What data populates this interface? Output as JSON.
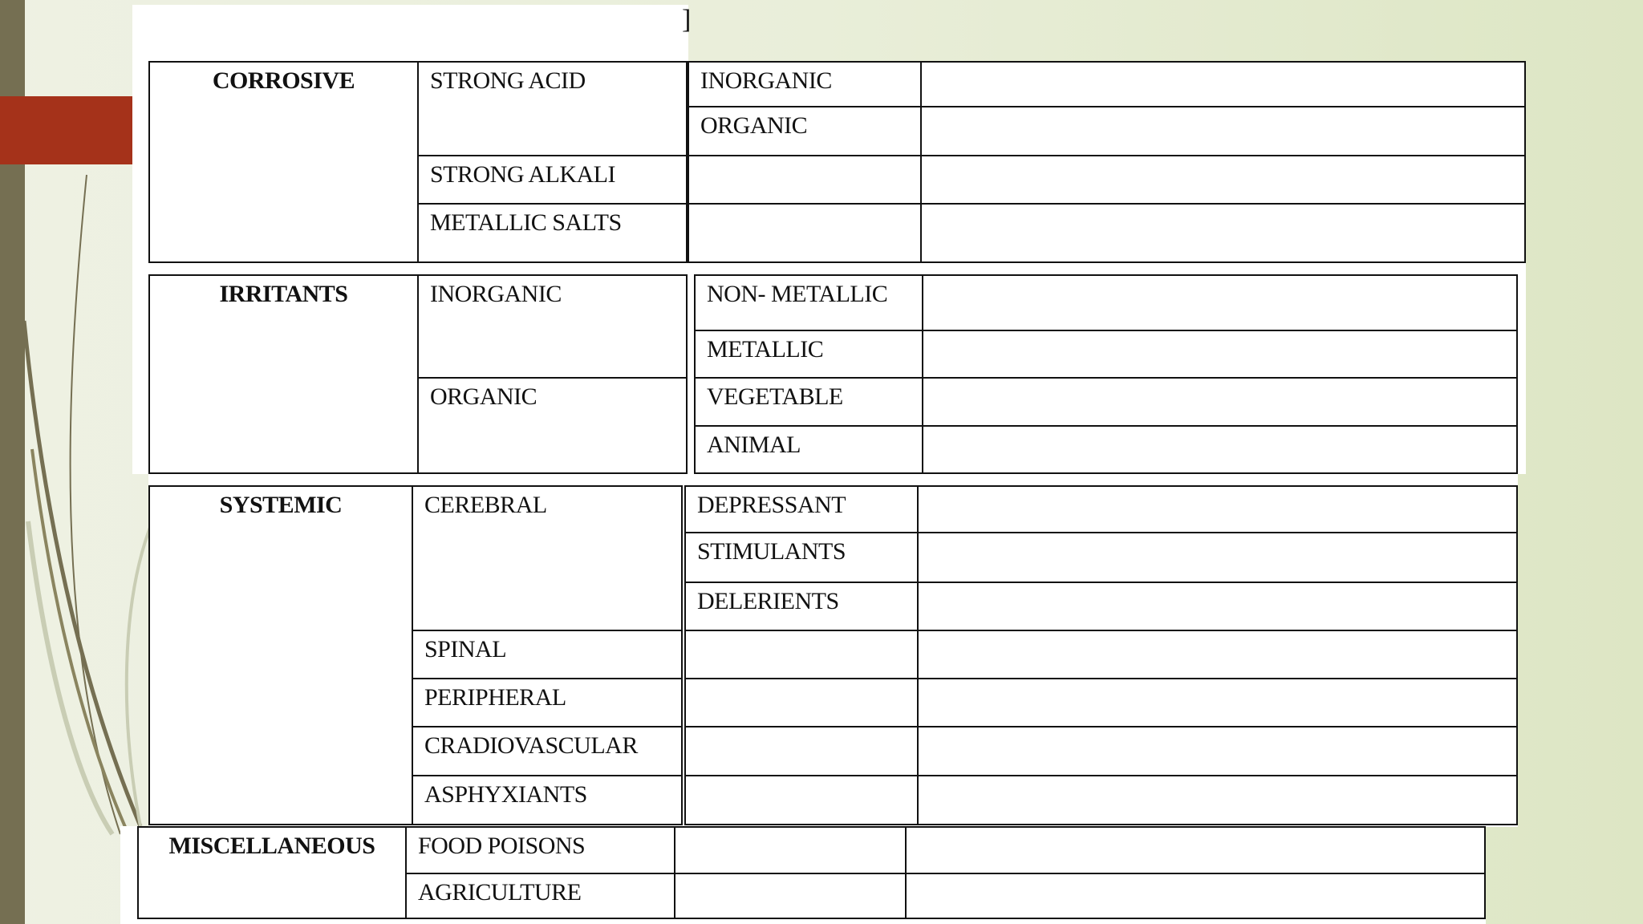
{
  "slide": {
    "accent_color": "#a5321a",
    "bar_color": "#756f52",
    "stray_text": "]"
  },
  "table": {
    "corrosive": {
      "category": "CORROSIVE",
      "subtypes": [
        "STRONG ACID",
        "STRONG ALKALI",
        "METALLIC SALTS"
      ],
      "strong_acid_types": [
        "INORGANIC",
        "ORGANIC"
      ]
    },
    "irritants": {
      "category": "IRRITANTS",
      "subtypes": [
        "INORGANIC",
        "ORGANIC"
      ],
      "inorganic_types": [
        "NON- METALLIC",
        "METALLIC"
      ],
      "organic_types": [
        "VEGETABLE",
        "ANIMAL"
      ]
    },
    "systemic": {
      "category": "SYSTEMIC",
      "subtypes": [
        "CEREBRAL",
        "SPINAL",
        "PERIPHERAL",
        "CRADIOVASCULAR",
        "ASPHYXIANTS"
      ],
      "cerebral_types": [
        "DEPRESSANT",
        "STIMULANTS",
        "DELERIENTS"
      ]
    },
    "miscellaneous": {
      "category": "MISCELLANEOUS",
      "subtypes": [
        "FOOD POISONS",
        "AGRICULTURE"
      ]
    }
  }
}
